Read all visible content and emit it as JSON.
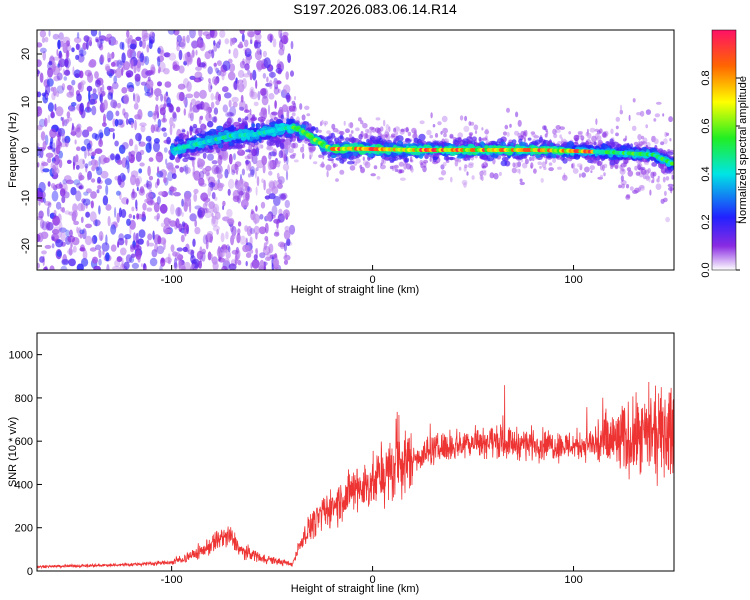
{
  "title": "S197.2026.083.06.14.R14",
  "chart_data": [
    {
      "type": "heatmap",
      "name": "spectrogram",
      "xlabel": "Height of straight line (km)",
      "ylabel": "Frequency (Hz)",
      "xlim": [
        -167,
        150
      ],
      "ylim": [
        -25,
        25
      ],
      "xticks": [
        -100,
        0,
        100
      ],
      "yticks": [
        -20,
        -10,
        0,
        10,
        20
      ],
      "colorbar": {
        "label": "Normalized spectral amplitude",
        "range": [
          0,
          1
        ],
        "ticks": [
          0.0,
          0.2,
          0.4,
          0.6,
          0.8
        ]
      },
      "ridge": [
        {
          "x": -100,
          "f": 0.0
        },
        {
          "x": -90,
          "f": 1.0
        },
        {
          "x": -80,
          "f": 2.0
        },
        {
          "x": -70,
          "f": 3.0
        },
        {
          "x": -60,
          "f": 3.2
        },
        {
          "x": -50,
          "f": 4.0
        },
        {
          "x": -40,
          "f": 4.8
        },
        {
          "x": -35,
          "f": 4.0
        },
        {
          "x": -30,
          "f": 2.5
        },
        {
          "x": -25,
          "f": 1.2
        },
        {
          "x": -20,
          "f": 0.2
        },
        {
          "x": -10,
          "f": 0.3
        },
        {
          "x": 0,
          "f": 0.2
        },
        {
          "x": 20,
          "f": 0.0
        },
        {
          "x": 50,
          "f": 0.0
        },
        {
          "x": 80,
          "f": 0.0
        },
        {
          "x": 100,
          "f": -0.2
        },
        {
          "x": 120,
          "f": -0.5
        },
        {
          "x": 140,
          "f": -1.0
        },
        {
          "x": 150,
          "f": -3.0
        }
      ]
    },
    {
      "type": "line",
      "name": "snr",
      "xlabel": "Height of straight line (km)",
      "ylabel": "SNR (10 * v/v)",
      "xlim": [
        -167,
        150
      ],
      "ylim": [
        0,
        1100
      ],
      "xticks": [
        -100,
        0,
        100
      ],
      "yticks": [
        0,
        200,
        400,
        600,
        800,
        1000
      ],
      "color": "#ee3333",
      "series": [
        {
          "name": "SNR",
          "x": [
            -167,
            -140,
            -120,
            -100,
            -90,
            -80,
            -75,
            -70,
            -65,
            -60,
            -55,
            -50,
            -45,
            -40,
            -35,
            -30,
            -25,
            -20,
            -15,
            -10,
            -5,
            0,
            10,
            20,
            30,
            40,
            50,
            60,
            70,
            80,
            90,
            100,
            110,
            120,
            130,
            140,
            150
          ],
          "values": [
            20,
            25,
            30,
            40,
            70,
            120,
            160,
            150,
            90,
            80,
            60,
            50,
            40,
            30,
            150,
            220,
            260,
            300,
            330,
            370,
            390,
            410,
            470,
            520,
            560,
            580,
            600,
            600,
            590,
            590,
            580,
            580,
            590,
            600,
            610,
            620,
            640
          ]
        }
      ]
    }
  ]
}
